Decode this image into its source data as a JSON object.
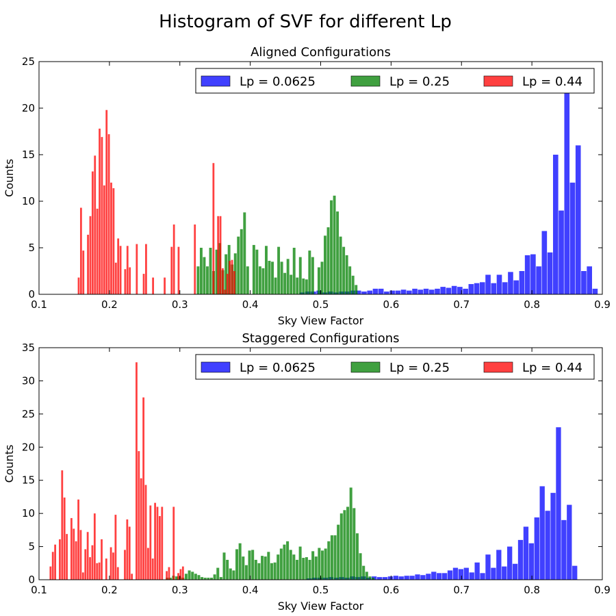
{
  "figure_title": "Histogram of SVF for different Lp",
  "colors": {
    "Lp = 0.0625": "#0000ff",
    "Lp = 0.25": "#008000",
    "Lp = 0.44": "#ff0000"
  },
  "chart_data": [
    {
      "type": "bar",
      "title": "Aligned Configurations",
      "xlabel": "Sky View Factor",
      "ylabel": "Counts",
      "xlim": [
        0.1,
        0.9
      ],
      "ylim": [
        0,
        25
      ],
      "xticks": [
        "0.1",
        "0.2",
        "0.3",
        "0.4",
        "0.5",
        "0.6",
        "0.7",
        "0.8",
        "0.9"
      ],
      "yticks": [
        "0",
        "5",
        "10",
        "15",
        "20",
        "25"
      ],
      "legend_placement": "top-right",
      "series": [
        {
          "name": "Lp = 0.0625",
          "color": "#0000ff",
          "bin_start": 0.47,
          "bin_width": 0.008,
          "counts": [
            0.2,
            0.3,
            0.3,
            0.4,
            0.2,
            0.3,
            0.2,
            0.3,
            0.3,
            0.4,
            0.4,
            0.3,
            0.4,
            0.6,
            0.6,
            0.3,
            0.4,
            0.4,
            0.5,
            0.4,
            0.6,
            0.5,
            0.6,
            0.5,
            0.6,
            0.8,
            0.7,
            0.9,
            0.8,
            0.6,
            1.1,
            1.2,
            1.3,
            2.1,
            1.2,
            2.1,
            1.3,
            2.4,
            1.5,
            2.5,
            4.2,
            4.3,
            3.0,
            6.8,
            4.5,
            15.0,
            9.0,
            22.0,
            12.0,
            16.0,
            2.5,
            3.0,
            0.6
          ]
        },
        {
          "name": "Lp = 0.25",
          "color": "#008000",
          "bin_start": 0.324,
          "bin_width": 0.0044,
          "counts": [
            3.0,
            5.0,
            4.0,
            3.0,
            5.0,
            2.5,
            4.8,
            5.5,
            2.6,
            4.3,
            5.3,
            3.2,
            4.4,
            6.2,
            7.0,
            8.8,
            3.0,
            0,
            5.3,
            4.8,
            3.0,
            2.8,
            5.2,
            3.6,
            3.5,
            1.8,
            5.1,
            3.5,
            2.3,
            3.8,
            2.1,
            5.0,
            1.8,
            4.0,
            1.7,
            1.6,
            4.7,
            4.0,
            0,
            2.9,
            3.5,
            6.3,
            7.2,
            10.1,
            10.6,
            8.9,
            6.2,
            5.1,
            4.2,
            3.0,
            2.0,
            1.0
          ]
        },
        {
          "name": "Lp = 0.44",
          "color": "#ff0000",
          "bin_start": 0.155,
          "bin_width": 0.0033,
          "counts": [
            1.8,
            9.3,
            4.7,
            0,
            6.4,
            8.4,
            13.2,
            14.9,
            9.2,
            17.8,
            16.9,
            11.7,
            19.8,
            17.2,
            12.0,
            11.4,
            3.4,
            6.0,
            5.2,
            0,
            2.7,
            5.2,
            2.9,
            0,
            0,
            5.4,
            0,
            0,
            2.2,
            5.4,
            0,
            0,
            1.8,
            0,
            0,
            0,
            0,
            1.8,
            0,
            0,
            5.1,
            7.5,
            0,
            5.1,
            0,
            0,
            0,
            0,
            0,
            0,
            7.5,
            0,
            0,
            0,
            0,
            0,
            0,
            0,
            14.1,
            0,
            8.4,
            8.4,
            2.8,
            0.5,
            2.2,
            3.6,
            3.7,
            2.5
          ]
        }
      ]
    },
    {
      "type": "bar",
      "title": "Staggered Configurations",
      "xlabel": "Sky View Factor",
      "ylabel": "Counts",
      "xlim": [
        0.1,
        0.9
      ],
      "ylim": [
        0,
        35
      ],
      "xticks": [
        "0.1",
        "0.2",
        "0.3",
        "0.4",
        "0.5",
        "0.6",
        "0.7",
        "0.8",
        "0.9"
      ],
      "yticks": [
        "0",
        "5",
        "10",
        "15",
        "20",
        "25",
        "30",
        "35"
      ],
      "legend_placement": "top-right",
      "series": [
        {
          "name": "Lp = 0.0625",
          "color": "#0000ff",
          "bin_start": 0.48,
          "bin_width": 0.0077,
          "counts": [
            0.2,
            0.3,
            0.3,
            0.3,
            0.4,
            0.3,
            0.4,
            0.3,
            0.5,
            0.4,
            0.5,
            0.3,
            0.5,
            0.4,
            0.4,
            0.5,
            0.6,
            0.5,
            0.6,
            0.6,
            0.8,
            0.7,
            0.9,
            1.2,
            1.0,
            1.0,
            1.4,
            1.8,
            1.6,
            1.8,
            1.1,
            2.6,
            1.0,
            3.8,
            1.8,
            4.5,
            2.0,
            5.0,
            2.4,
            6.0,
            8.0,
            5.5,
            9.4,
            14.1,
            10.4,
            13.1,
            23.0,
            9.0,
            11.3,
            2.1
          ]
        },
        {
          "name": "Lp = 0.25",
          "color": "#008000",
          "bin_start": 0.28,
          "bin_width": 0.0045,
          "counts": [
            0.3,
            0.3,
            0.6,
            0.5,
            0.5,
            0.3,
            0.9,
            1.4,
            1.2,
            0.9,
            0.7,
            0.4,
            0.3,
            0.3,
            0.3,
            0.8,
            1.8,
            0.4,
            4.1,
            3.0,
            1.7,
            1.4,
            4.6,
            5.5,
            3.5,
            2.2,
            4.4,
            4.5,
            3.0,
            2.5,
            3.6,
            3.5,
            4.2,
            2.5,
            2.6,
            3.8,
            4.7,
            5.3,
            5.8,
            4.5,
            3.8,
            3.0,
            5.0,
            3.3,
            3.4,
            3.0,
            4.3,
            3.5,
            4.8,
            4.4,
            4.7,
            5.8,
            6.7,
            6.7,
            8.3,
            10.0,
            10.5,
            11.0,
            13.9,
            10.8,
            7.0,
            4.0,
            2.1,
            1.2,
            0.5,
            0.3
          ]
        },
        {
          "name": "Lp = 0.44",
          "color": "#ff0000",
          "bin_start": 0.115,
          "bin_width": 0.0033,
          "counts": [
            2.0,
            4.2,
            5.3,
            0,
            6.1,
            16.5,
            12.4,
            6.9,
            0,
            9.3,
            7.7,
            5.8,
            12.1,
            7.5,
            1.1,
            4.6,
            7.2,
            3.4,
            5.2,
            10.0,
            2.5,
            2.6,
            6.1,
            0,
            3.2,
            0,
            4.9,
            4.1,
            9.8,
            1.9,
            0,
            0,
            4.5,
            9.1,
            8.0,
            0.9,
            0,
            32.8,
            19.4,
            15.3,
            27.5,
            14.3,
            4.8,
            11.2,
            3.2,
            11.6,
            11.0,
            9.6,
            11.0,
            0,
            1.3,
            1.9,
            0,
            11.0,
            0,
            1.0,
            1.6,
            2.0
          ]
        }
      ]
    }
  ]
}
